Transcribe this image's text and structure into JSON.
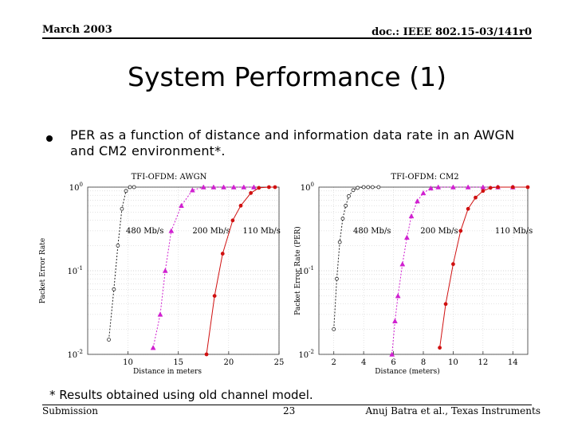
{
  "header": {
    "date": "March 2003",
    "doc": "doc.: IEEE 802.15-03/141r0"
  },
  "title": "System Performance (1)",
  "bullet": "PER as a function of distance and information data rate in an AWGN and CM2 environment*.",
  "footnote": "* Results obtained using old channel model.",
  "footer": {
    "left": "Submission",
    "page": "23",
    "right": "Anuj Batra et al., Texas Instruments"
  },
  "colors": {
    "r480": "#222222",
    "r200": "#d020d0",
    "r110": "#d01010"
  },
  "chart_data": [
    {
      "type": "line",
      "title": "TFI-OFDM: AWGN",
      "xlabel": "Distance in meters",
      "ylabel": "Packet Error Rate",
      "xlim": [
        6,
        25
      ],
      "ylim": [
        0.01,
        1
      ],
      "yscale": "log",
      "xticks": [
        10,
        15,
        20,
        25
      ],
      "grid": true,
      "series": [
        {
          "name": "480 Mb/s",
          "color": "#222222",
          "points": [
            [
              8.1,
              0.015
            ],
            [
              8.6,
              0.06
            ],
            [
              9.0,
              0.2
            ],
            [
              9.4,
              0.55
            ],
            [
              9.8,
              0.9
            ],
            [
              10.2,
              1
            ],
            [
              10.6,
              1
            ]
          ]
        },
        {
          "name": "200 Mb/s",
          "color": "#d020d0",
          "points": [
            [
              12.5,
              0.012
            ],
            [
              13.2,
              0.03
            ],
            [
              13.7,
              0.1
            ],
            [
              14.3,
              0.3
            ],
            [
              15.3,
              0.6
            ],
            [
              16.4,
              0.92
            ],
            [
              17.5,
              1
            ],
            [
              18.5,
              1
            ],
            [
              19.5,
              1
            ],
            [
              20.5,
              1
            ],
            [
              21.5,
              1
            ],
            [
              22.5,
              1
            ]
          ]
        },
        {
          "name": "110 Mb/s",
          "color": "#d01010",
          "points": [
            [
              17.8,
              0.01
            ],
            [
              18.6,
              0.05
            ],
            [
              19.4,
              0.16
            ],
            [
              20.4,
              0.4
            ],
            [
              21.2,
              0.6
            ],
            [
              22.2,
              0.85
            ],
            [
              23.0,
              0.98
            ],
            [
              24.0,
              1
            ],
            [
              24.6,
              1
            ]
          ]
        }
      ]
    },
    {
      "type": "line",
      "title": "TFI-OFDM: CM2",
      "xlabel": "Distance (meters)",
      "ylabel": "Packet Error Rate (PER)",
      "xlim": [
        1,
        15
      ],
      "ylim": [
        0.01,
        1
      ],
      "yscale": "log",
      "xticks": [
        2,
        4,
        6,
        8,
        10,
        12,
        14
      ],
      "grid": true,
      "series": [
        {
          "name": "480 Mb/s",
          "color": "#222222",
          "points": [
            [
              2.0,
              0.02
            ],
            [
              2.2,
              0.08
            ],
            [
              2.4,
              0.22
            ],
            [
              2.6,
              0.42
            ],
            [
              2.8,
              0.6
            ],
            [
              3.0,
              0.78
            ],
            [
              3.3,
              0.92
            ],
            [
              3.6,
              0.98
            ],
            [
              4.0,
              1
            ],
            [
              4.3,
              1
            ],
            [
              4.6,
              1
            ],
            [
              5.0,
              1
            ]
          ]
        },
        {
          "name": "200 Mb/s",
          "color": "#d020d0",
          "points": [
            [
              5.9,
              0.01
            ],
            [
              6.1,
              0.025
            ],
            [
              6.3,
              0.05
            ],
            [
              6.6,
              0.12
            ],
            [
              6.9,
              0.25
            ],
            [
              7.2,
              0.45
            ],
            [
              7.6,
              0.68
            ],
            [
              8.0,
              0.85
            ],
            [
              8.5,
              0.97
            ],
            [
              9.0,
              1
            ],
            [
              10,
              1
            ],
            [
              11,
              1
            ],
            [
              12,
              1
            ],
            [
              13,
              1
            ],
            [
              14,
              1
            ]
          ]
        },
        {
          "name": "110 Mb/s",
          "color": "#d01010",
          "points": [
            [
              9.1,
              0.012
            ],
            [
              9.5,
              0.04
            ],
            [
              10.0,
              0.12
            ],
            [
              10.5,
              0.3
            ],
            [
              11.0,
              0.55
            ],
            [
              11.5,
              0.75
            ],
            [
              12.0,
              0.9
            ],
            [
              12.5,
              0.98
            ],
            [
              13.0,
              1
            ],
            [
              14.0,
              1
            ],
            [
              15.0,
              1
            ]
          ]
        }
      ]
    }
  ]
}
